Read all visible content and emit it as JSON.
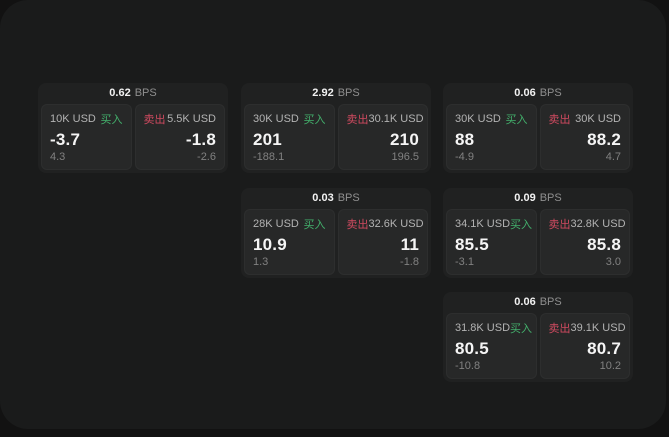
{
  "labels": {
    "bps": "BPS",
    "buy": "买入",
    "sell": "卖出"
  },
  "colors": {
    "backdrop": "#121212",
    "surface_bg": "#1a1b1b",
    "card_bg": "#202121",
    "panel_bg": "#272828",
    "buy_green": "#43b06c",
    "sell_red": "#d04a60"
  },
  "cards": [
    {
      "bps": "0.62",
      "buy": {
        "amount": "10K USD",
        "value": "-3.7",
        "sub": "4.3"
      },
      "sell": {
        "amount": "5.5K USD",
        "value": "-1.8",
        "sub": "-2.6"
      }
    },
    {
      "bps": "2.92",
      "buy": {
        "amount": "30K USD",
        "value": "201",
        "sub": "-188.1"
      },
      "sell": {
        "amount": "30.1K USD",
        "value": "210",
        "sub": "196.5"
      }
    },
    {
      "bps": "0.06",
      "buy": {
        "amount": "30K USD",
        "value": "88",
        "sub": "-4.9"
      },
      "sell": {
        "amount": "30K USD",
        "value": "88.2",
        "sub": "4.7"
      }
    },
    {
      "bps": "0.03",
      "buy": {
        "amount": "28K USD",
        "value": "10.9",
        "sub": "1.3"
      },
      "sell": {
        "amount": "32.6K USD",
        "value": "11",
        "sub": "-1.8"
      }
    },
    {
      "bps": "0.09",
      "buy": {
        "amount": "34.1K USD",
        "value": "85.5",
        "sub": "-3.1"
      },
      "sell": {
        "amount": "32.8K USD",
        "value": "85.8",
        "sub": "3.0"
      }
    },
    {
      "bps": "0.06",
      "buy": {
        "amount": "31.8K USD",
        "value": "80.5",
        "sub": "-10.8"
      },
      "sell": {
        "amount": "39.1K USD",
        "value": "80.7",
        "sub": "10.2"
      }
    }
  ]
}
